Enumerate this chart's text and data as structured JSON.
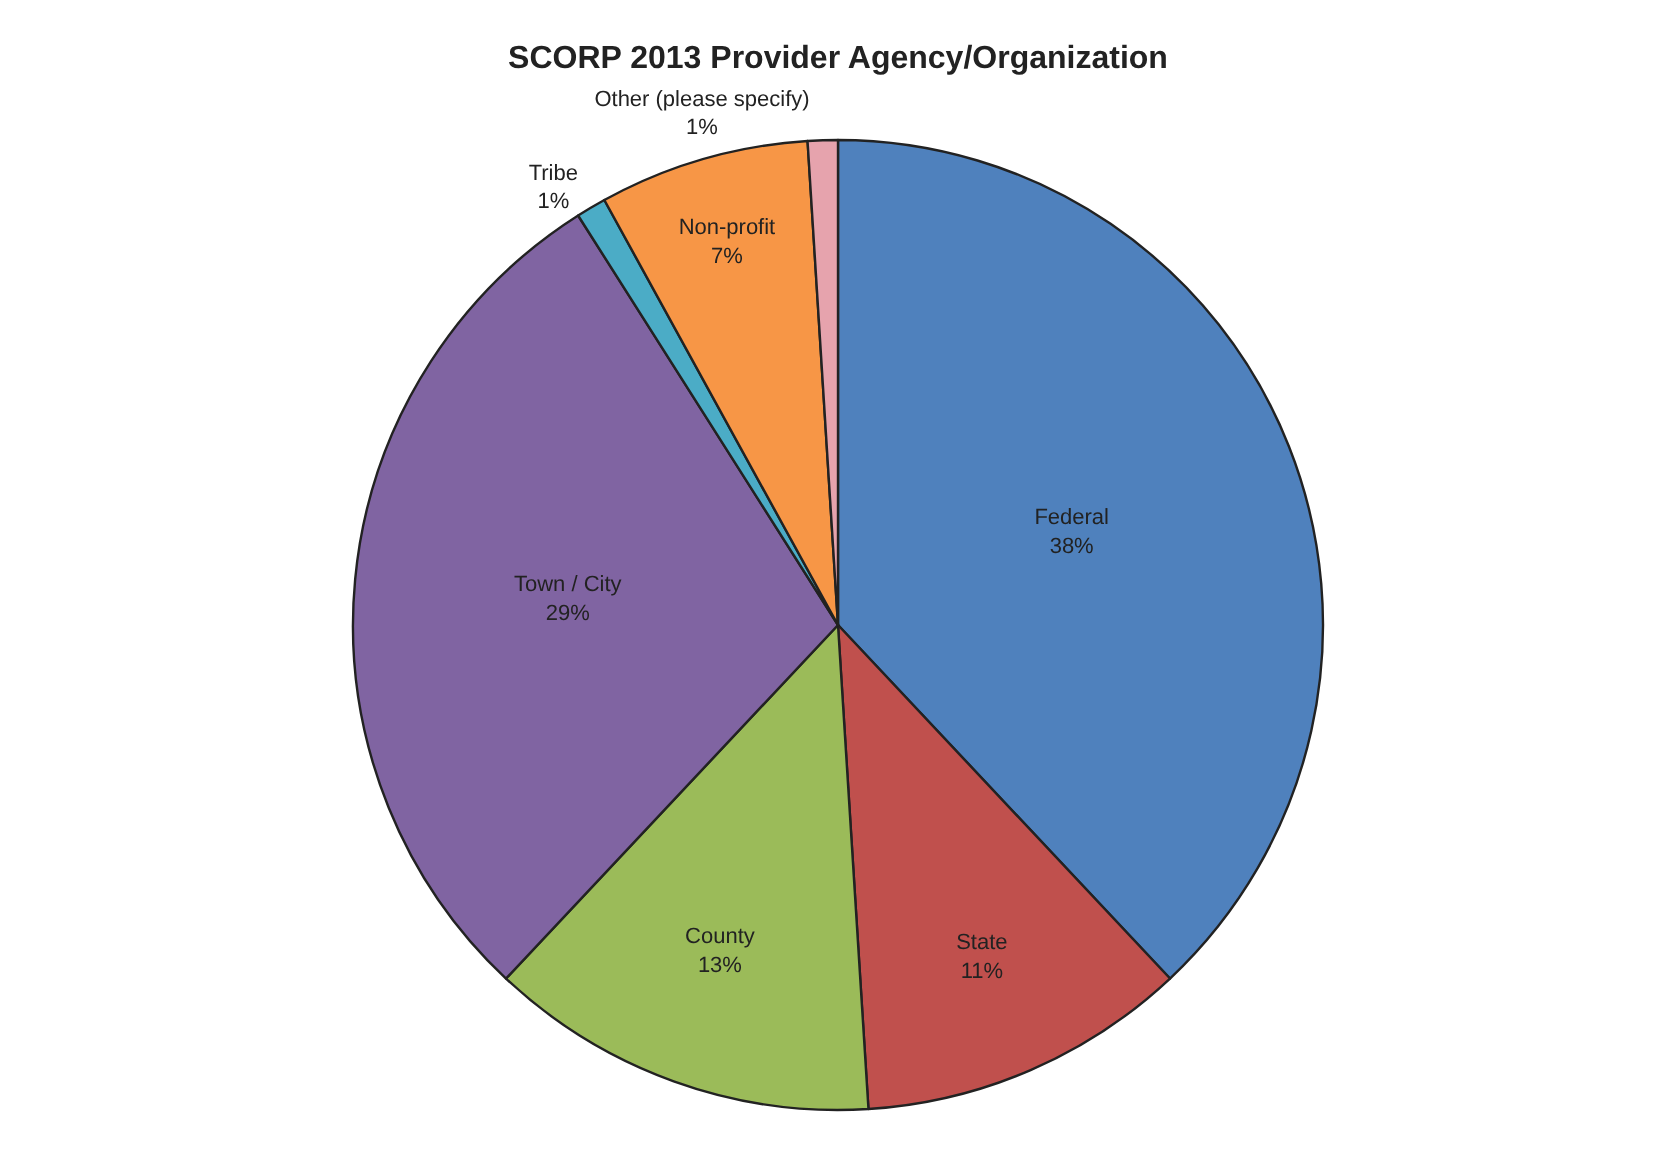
{
  "chart_data": {
    "type": "pie",
    "title": "SCORP 2013 Provider Agency/Organization",
    "categories": [
      "Federal",
      "State",
      "County",
      "Town / City",
      "Tribe",
      "Non-profit",
      "Other (please specify)"
    ],
    "values": [
      38,
      11,
      13,
      29,
      1,
      7,
      1
    ],
    "value_labels": [
      "38%",
      "11%",
      "13%",
      "29%",
      "1%",
      "7%",
      "1%"
    ],
    "colors": [
      "#4f81bd",
      "#c0504d",
      "#9bbb59",
      "#8064a2",
      "#4bacc6",
      "#f79646",
      "#e6a3ad"
    ],
    "legend": false
  }
}
